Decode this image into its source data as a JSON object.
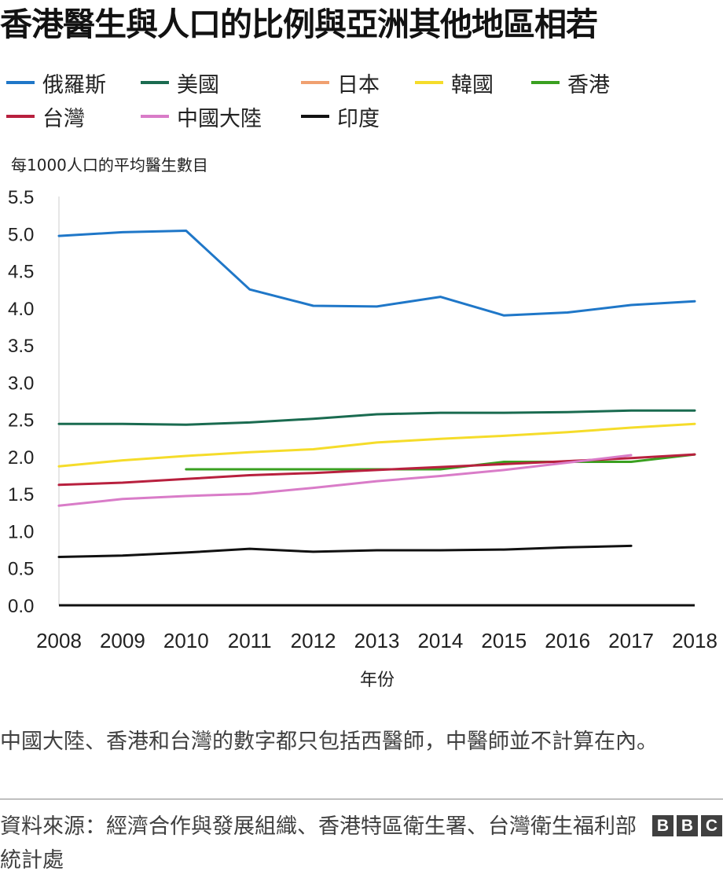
{
  "title": "香港醫生與人口的比例與亞洲其他地區相若",
  "note": "中國大陸、香港和台灣的數字都只包括西醫師，中醫師並不計算在內。",
  "source": "資料來源：經濟合作與發展組織、香港特區衛生署、台灣衛生福利部統計處",
  "logo": [
    "B",
    "B",
    "C"
  ],
  "chart_data": {
    "type": "line",
    "title": "香港醫生與人口的比例與亞洲其他地區相若",
    "ylabel": "每1000人口的平均醫生數目",
    "xlabel": "年份",
    "ylim": [
      0,
      5.5
    ],
    "y_ticks": [
      "0.0",
      "0.5",
      "1.0",
      "1.5",
      "2.0",
      "2.5",
      "3.0",
      "3.5",
      "4.0",
      "4.5",
      "5.0",
      "5.5"
    ],
    "x": [
      "2008",
      "2009",
      "2010",
      "2011",
      "2012",
      "2013",
      "2014",
      "2015",
      "2016",
      "2017",
      "2018"
    ],
    "legend_position": "top",
    "series": [
      {
        "name": "俄羅斯",
        "color": "#1f77c8",
        "values": [
          4.97,
          5.02,
          5.04,
          4.25,
          4.03,
          4.02,
          4.15,
          3.9,
          3.94,
          4.04,
          4.09
        ]
      },
      {
        "name": "美國",
        "color": "#1a6b50",
        "values": [
          2.44,
          2.44,
          2.43,
          2.46,
          2.51,
          2.57,
          2.59,
          2.59,
          2.6,
          2.62,
          2.62
        ]
      },
      {
        "name": "日本",
        "color": "#f0a070",
        "values": [
          null,
          null,
          null,
          null,
          null,
          null,
          null,
          null,
          null,
          null,
          null
        ]
      },
      {
        "name": "韓國",
        "color": "#f5dc2a",
        "values": [
          1.87,
          1.95,
          2.01,
          2.06,
          2.1,
          2.19,
          2.24,
          2.28,
          2.33,
          2.39,
          2.44
        ]
      },
      {
        "name": "香港",
        "color": "#3aa020",
        "values": [
          null,
          null,
          1.83,
          1.83,
          1.83,
          1.83,
          1.83,
          1.93,
          1.93,
          1.93,
          2.03
        ]
      },
      {
        "name": "台灣",
        "color": "#b8203e",
        "values": [
          1.62,
          1.65,
          1.7,
          1.75,
          1.78,
          1.82,
          1.86,
          1.9,
          1.94,
          1.98,
          2.03
        ]
      },
      {
        "name": "中國大陸",
        "color": "#d97cc8",
        "values": [
          1.34,
          1.43,
          1.47,
          1.5,
          1.58,
          1.67,
          1.74,
          1.82,
          1.92,
          2.02,
          null
        ]
      },
      {
        "name": "印度",
        "color": "#111111",
        "values": [
          0.65,
          0.67,
          0.71,
          0.76,
          0.72,
          0.74,
          0.74,
          0.75,
          0.78,
          0.8,
          null
        ]
      }
    ]
  }
}
